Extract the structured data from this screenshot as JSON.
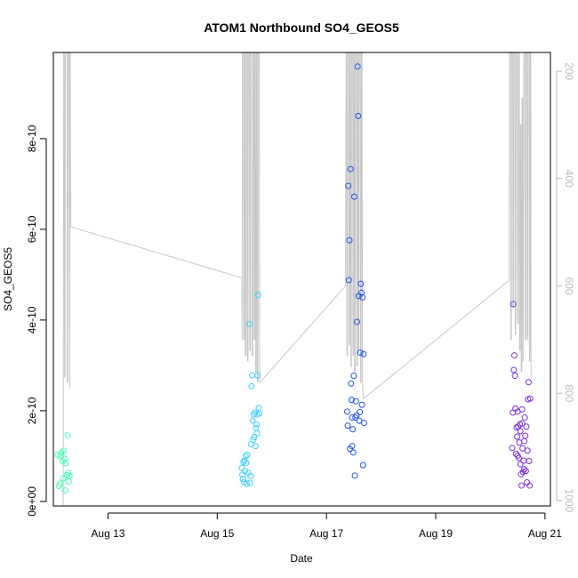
{
  "chart_data": {
    "type": "scatter",
    "title": "ATOM1 Northbound SO4_GEOS5",
    "xlabel": "Date",
    "ylabel": "SO4_GEOS5",
    "x_ticks": [
      {
        "value": 13,
        "label": "Aug 13"
      },
      {
        "value": 15,
        "label": "Aug 15"
      },
      {
        "value": 17,
        "label": "Aug 17"
      },
      {
        "value": 19,
        "label": "Aug 19"
      },
      {
        "value": 21,
        "label": "Aug 21"
      }
    ],
    "y_ticks": [
      {
        "value": 0,
        "label": "0e+00"
      },
      {
        "value": 2e-10,
        "label": "2e-10"
      },
      {
        "value": 4e-10,
        "label": "4e-10"
      },
      {
        "value": 6e-10,
        "label": "6e-10"
      },
      {
        "value": 8e-10,
        "label": "8e-10"
      }
    ],
    "y2_ticks": [
      {
        "value": 200,
        "label": "200"
      },
      {
        "value": 400,
        "label": "400"
      },
      {
        "value": 600,
        "label": "600"
      },
      {
        "value": 800,
        "label": "800"
      },
      {
        "value": 1000,
        "label": "1000"
      }
    ],
    "xlim": [
      12.0,
      21.1
    ],
    "ylim": [
      -1e-11,
      9.9e-10
    ],
    "y2lim": [
      1010,
      165
    ],
    "point_colors": [
      "#40ffb0",
      "#40d0ff",
      "#2050ee",
      "#7a30e0"
    ],
    "flights": [
      {
        "color_index": 0,
        "points": [
          [
            12.08,
            1.03e-10
          ],
          [
            12.1,
            3.4e-11
          ],
          [
            12.12,
            3.9e-11
          ],
          [
            12.13,
            1e-10
          ],
          [
            12.15,
            1.07e-10
          ],
          [
            12.17,
            8.9e-11
          ],
          [
            12.18,
            5.1e-11
          ],
          [
            12.19,
            1.12e-10
          ],
          [
            12.21,
            9.4e-11
          ],
          [
            12.22,
            2.4e-11
          ],
          [
            12.23,
            8.4e-11
          ],
          [
            12.25,
            5.8e-11
          ],
          [
            12.26,
            1.46e-10
          ],
          [
            12.27,
            6.3e-11
          ],
          [
            12.28,
            4.4e-11
          ],
          [
            12.3,
            5.6e-11
          ]
        ]
      },
      {
        "color_index": 1,
        "points": [
          [
            15.45,
            7.4e-11
          ],
          [
            15.46,
            5.9e-11
          ],
          [
            15.47,
            4.9e-11
          ],
          [
            15.48,
            8.7e-11
          ],
          [
            15.49,
            4.3e-11
          ],
          [
            15.5,
            9e-11
          ],
          [
            15.51,
            6.7e-11
          ],
          [
            15.52,
            1e-10
          ],
          [
            15.53,
            8.5e-11
          ],
          [
            15.54,
            3.9e-11
          ],
          [
            15.55,
            1.03e-10
          ],
          [
            15.57,
            6.3e-11
          ],
          [
            15.59,
            3.91e-10
          ],
          [
            15.6,
            4.1e-11
          ],
          [
            15.61,
            5.6e-11
          ],
          [
            15.62,
            1.26e-10
          ],
          [
            15.63,
            2.54e-10
          ],
          [
            15.64,
            2.78e-10
          ],
          [
            15.65,
            1.78e-10
          ],
          [
            15.66,
            1.36e-10
          ],
          [
            15.67,
            1.92e-10
          ],
          [
            15.68,
            1.42e-10
          ],
          [
            15.69,
            1.96e-10
          ],
          [
            15.7,
            1.22e-10
          ],
          [
            15.71,
            1.62e-10
          ],
          [
            15.72,
            1.7e-10
          ],
          [
            15.73,
            1.92e-10
          ],
          [
            15.74,
            2.78e-10
          ],
          [
            15.75,
            4.55e-10
          ],
          [
            15.76,
            2.06e-10
          ],
          [
            15.77,
            1.94e-10
          ],
          [
            15.73,
            1.5e-10
          ]
        ]
      },
      {
        "color_index": 2,
        "points": [
          [
            17.38,
            1.98e-10
          ],
          [
            17.39,
            1.67e-10
          ],
          [
            17.4,
            6.96e-10
          ],
          [
            17.41,
            4.88e-10
          ],
          [
            17.42,
            5.76e-10
          ],
          [
            17.43,
            1.16e-10
          ],
          [
            17.44,
            7.33e-10
          ],
          [
            17.45,
            2.6e-10
          ],
          [
            17.46,
            2.24e-10
          ],
          [
            17.47,
            1.22e-10
          ],
          [
            17.48,
            1.59e-10
          ],
          [
            17.49,
            1.08e-10
          ],
          [
            17.5,
            2.77e-10
          ],
          [
            17.51,
            6.72e-10
          ],
          [
            17.52,
            5.7e-11
          ],
          [
            17.53,
            1.85e-10
          ],
          [
            17.54,
            2.21e-10
          ],
          [
            17.55,
            1.9e-10
          ],
          [
            17.56,
            3.96e-10
          ],
          [
            17.57,
            9.59e-10
          ],
          [
            17.58,
            8.5e-10
          ],
          [
            17.59,
            4.53e-10
          ],
          [
            17.6,
            1.78e-10
          ],
          [
            17.61,
            1.97e-10
          ],
          [
            17.62,
            3.28e-10
          ],
          [
            17.63,
            4.8e-10
          ],
          [
            17.64,
            4.6e-10
          ],
          [
            17.65,
            2.13e-10
          ],
          [
            17.66,
            4.5e-10
          ],
          [
            17.67,
            8e-11
          ],
          [
            17.68,
            3.25e-10
          ],
          [
            17.69,
            1.73e-10
          ],
          [
            17.47,
            1.85e-10
          ]
        ]
      },
      {
        "color_index": 3,
        "points": [
          [
            20.4,
            1.18e-10
          ],
          [
            20.41,
            1.96e-10
          ],
          [
            20.42,
            4.35e-10
          ],
          [
            20.43,
            2.9e-10
          ],
          [
            20.44,
            3.22e-10
          ],
          [
            20.45,
            2.77e-10
          ],
          [
            20.46,
            2.05e-10
          ],
          [
            20.47,
            1.05e-10
          ],
          [
            20.48,
            1.63e-10
          ],
          [
            20.49,
            1.43e-10
          ],
          [
            20.5,
            1.98e-10
          ],
          [
            20.51,
            1.65e-10
          ],
          [
            20.52,
            9.6e-11
          ],
          [
            20.53,
            1.3e-10
          ],
          [
            20.54,
            1.7e-10
          ],
          [
            20.55,
            1.55e-10
          ],
          [
            20.56,
            6e-11
          ],
          [
            20.57,
            3.5e-11
          ],
          [
            20.58,
            2.03e-10
          ],
          [
            20.59,
            1.17e-10
          ],
          [
            20.6,
            6.5e-11
          ],
          [
            20.61,
            9e-11
          ],
          [
            20.62,
            7.1e-11
          ],
          [
            20.63,
            1.85e-10
          ],
          [
            20.64,
            1.45e-10
          ],
          [
            20.65,
            6.7e-11
          ],
          [
            20.66,
            1.65e-10
          ],
          [
            20.67,
            4.2e-11
          ],
          [
            20.68,
            1.12e-10
          ],
          [
            20.69,
            2.25e-10
          ],
          [
            20.7,
            2.63e-10
          ],
          [
            20.71,
            8.9e-11
          ],
          [
            20.72,
            3.5e-11
          ],
          [
            20.73,
            2.27e-10
          ],
          [
            20.58,
            1.72e-10
          ],
          [
            20.62,
            1.33e-10
          ],
          [
            20.5,
            1.01e-10
          ],
          [
            20.55,
            8.2e-11
          ]
        ]
      }
    ],
    "pressure_trace": [
      [
        12.18,
        1040
      ],
      [
        12.19,
        160
      ],
      [
        12.2,
        160
      ],
      [
        12.205,
        770
      ],
      [
        12.215,
        770
      ],
      [
        12.22,
        160
      ],
      [
        12.25,
        160
      ],
      [
        12.255,
        780
      ],
      [
        12.265,
        780
      ],
      [
        12.27,
        160
      ],
      [
        12.29,
        160
      ],
      [
        12.3,
        790
      ],
      [
        12.305,
        160
      ],
      [
        12.31,
        160
      ],
      [
        12.32,
        490
      ],
      [
        15.45,
        585
      ],
      [
        15.455,
        700
      ],
      [
        15.46,
        160
      ],
      [
        15.48,
        160
      ],
      [
        15.485,
        700
      ],
      [
        15.495,
        700
      ],
      [
        15.5,
        160
      ],
      [
        15.51,
        160
      ],
      [
        15.515,
        730
      ],
      [
        15.53,
        730
      ],
      [
        15.535,
        160
      ],
      [
        15.55,
        160
      ],
      [
        15.555,
        740
      ],
      [
        15.565,
        740
      ],
      [
        15.57,
        160
      ],
      [
        15.59,
        160
      ],
      [
        15.595,
        720
      ],
      [
        15.605,
        720
      ],
      [
        15.61,
        160
      ],
      [
        15.63,
        160
      ],
      [
        15.635,
        730
      ],
      [
        15.65,
        730
      ],
      [
        15.655,
        160
      ],
      [
        15.67,
        160
      ],
      [
        15.675,
        700
      ],
      [
        15.685,
        700
      ],
      [
        15.69,
        160
      ],
      [
        15.7,
        160
      ],
      [
        15.705,
        760
      ],
      [
        15.715,
        760
      ],
      [
        15.72,
        160
      ],
      [
        15.73,
        160
      ],
      [
        15.735,
        780
      ],
      [
        15.745,
        780
      ],
      [
        15.75,
        160
      ],
      [
        15.77,
        160
      ],
      [
        15.775,
        770
      ],
      [
        15.78,
        780
      ],
      [
        17.35,
        600
      ],
      [
        17.36,
        160
      ],
      [
        17.37,
        160
      ],
      [
        17.375,
        730
      ],
      [
        17.385,
        730
      ],
      [
        17.39,
        160
      ],
      [
        17.41,
        160
      ],
      [
        17.415,
        710
      ],
      [
        17.425,
        710
      ],
      [
        17.43,
        160
      ],
      [
        17.44,
        160
      ],
      [
        17.445,
        750
      ],
      [
        17.455,
        750
      ],
      [
        17.46,
        160
      ],
      [
        17.48,
        160
      ],
      [
        17.485,
        730
      ],
      [
        17.495,
        730
      ],
      [
        17.5,
        160
      ],
      [
        17.51,
        160
      ],
      [
        17.515,
        760
      ],
      [
        17.525,
        760
      ],
      [
        17.53,
        160
      ],
      [
        17.55,
        160
      ],
      [
        17.555,
        750
      ],
      [
        17.565,
        750
      ],
      [
        17.57,
        160
      ],
      [
        17.58,
        160
      ],
      [
        17.585,
        720
      ],
      [
        17.595,
        720
      ],
      [
        17.6,
        160
      ],
      [
        17.62,
        160
      ],
      [
        17.625,
        780
      ],
      [
        17.635,
        780
      ],
      [
        17.64,
        160
      ],
      [
        17.65,
        160
      ],
      [
        17.66,
        790
      ],
      [
        17.67,
        800
      ],
      [
        17.68,
        810
      ],
      [
        20.34,
        590
      ],
      [
        20.35,
        160
      ],
      [
        20.37,
        160
      ],
      [
        20.375,
        700
      ],
      [
        20.385,
        700
      ],
      [
        20.39,
        160
      ],
      [
        20.41,
        160
      ],
      [
        20.415,
        640
      ],
      [
        20.425,
        640
      ],
      [
        20.43,
        160
      ],
      [
        20.45,
        160
      ],
      [
        20.455,
        690
      ],
      [
        20.465,
        690
      ],
      [
        20.47,
        160
      ],
      [
        20.49,
        160
      ],
      [
        20.5,
        670
      ],
      [
        20.51,
        670
      ],
      [
        20.515,
        160
      ],
      [
        20.53,
        160
      ],
      [
        20.535,
        720
      ],
      [
        20.545,
        720
      ],
      [
        20.55,
        300
      ],
      [
        20.56,
        300
      ],
      [
        20.565,
        760
      ],
      [
        20.575,
        760
      ],
      [
        20.58,
        250
      ],
      [
        20.59,
        250
      ],
      [
        20.595,
        740
      ],
      [
        20.6,
        740
      ],
      [
        20.61,
        160
      ],
      [
        20.63,
        160
      ],
      [
        20.635,
        700
      ],
      [
        20.645,
        700
      ],
      [
        20.65,
        160
      ],
      [
        20.67,
        160
      ],
      [
        20.675,
        700
      ],
      [
        20.685,
        700
      ],
      [
        20.69,
        160
      ],
      [
        20.71,
        160
      ],
      [
        20.715,
        740
      ],
      [
        20.725,
        740
      ],
      [
        20.73,
        160
      ],
      [
        20.74,
        160
      ],
      [
        20.745,
        760
      ],
      [
        20.75,
        770
      ],
      [
        20.76,
        770
      ]
    ]
  }
}
